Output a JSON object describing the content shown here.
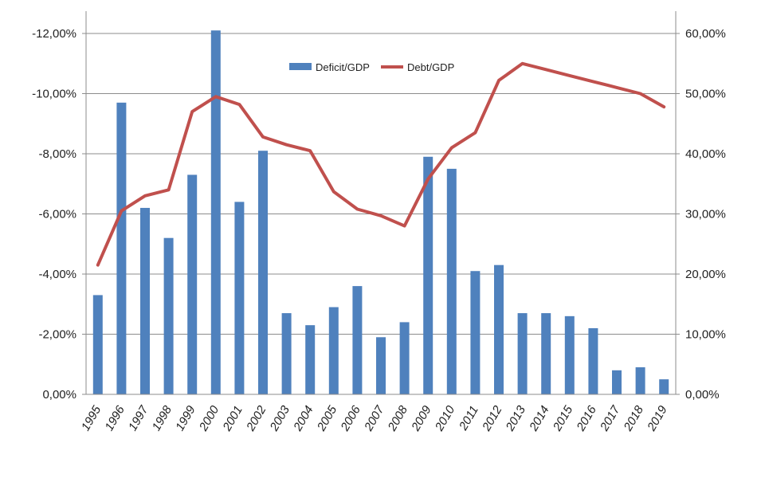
{
  "chart_data": {
    "type": "bar",
    "categories": [
      "1995",
      "1996",
      "1997",
      "1998",
      "1999",
      "2000",
      "2001",
      "2002",
      "2003",
      "2004",
      "2005",
      "2006",
      "2007",
      "2008",
      "2009",
      "2010",
      "2011",
      "2012",
      "2013",
      "2014",
      "2015",
      "2016",
      "2017",
      "2018",
      "2019"
    ],
    "series": [
      {
        "name": "Deficit/GDP",
        "type": "bar",
        "axis": "left",
        "color": "#4f81bd",
        "values": [
          -3.3,
          -9.7,
          -6.2,
          -5.2,
          -7.3,
          -12.1,
          -6.4,
          -8.1,
          -2.7,
          -2.3,
          -2.9,
          -3.6,
          -1.9,
          -2.4,
          -7.9,
          -7.5,
          -4.1,
          -4.3,
          -2.7,
          -2.7,
          -2.6,
          -2.2,
          -0.8,
          -0.9,
          -0.5
        ]
      },
      {
        "name": "Debt/GDP",
        "type": "line",
        "axis": "right",
        "color": "#c0504d",
        "values": [
          21.5,
          30.5,
          33.0,
          34.0,
          47.0,
          49.5,
          48.2,
          42.8,
          41.5,
          40.5,
          33.7,
          30.8,
          29.7,
          28.0,
          35.8,
          41.0,
          43.5,
          52.2,
          55.0,
          54.0,
          53.0,
          52.0,
          51.0,
          50.0,
          47.8
        ]
      }
    ],
    "y_left": {
      "ticks": [
        0,
        -2,
        -4,
        -6,
        -8,
        -10,
        -12
      ],
      "tick_labels": [
        "0,00%",
        "-2,00%",
        "-4,00%",
        "-6,00%",
        "-8,00%",
        "-10,00%",
        "-12,00%"
      ],
      "range": [
        0,
        -12
      ],
      "reversed": true
    },
    "y_right": {
      "ticks": [
        0,
        10,
        20,
        30,
        40,
        50,
        60
      ],
      "tick_labels": [
        "0,00%",
        "10,00%",
        "20,00%",
        "30,00%",
        "40,00%",
        "50,00%",
        "60,00%"
      ],
      "range": [
        0,
        60
      ]
    },
    "grid": true,
    "legend": {
      "placement": "top-center"
    }
  }
}
